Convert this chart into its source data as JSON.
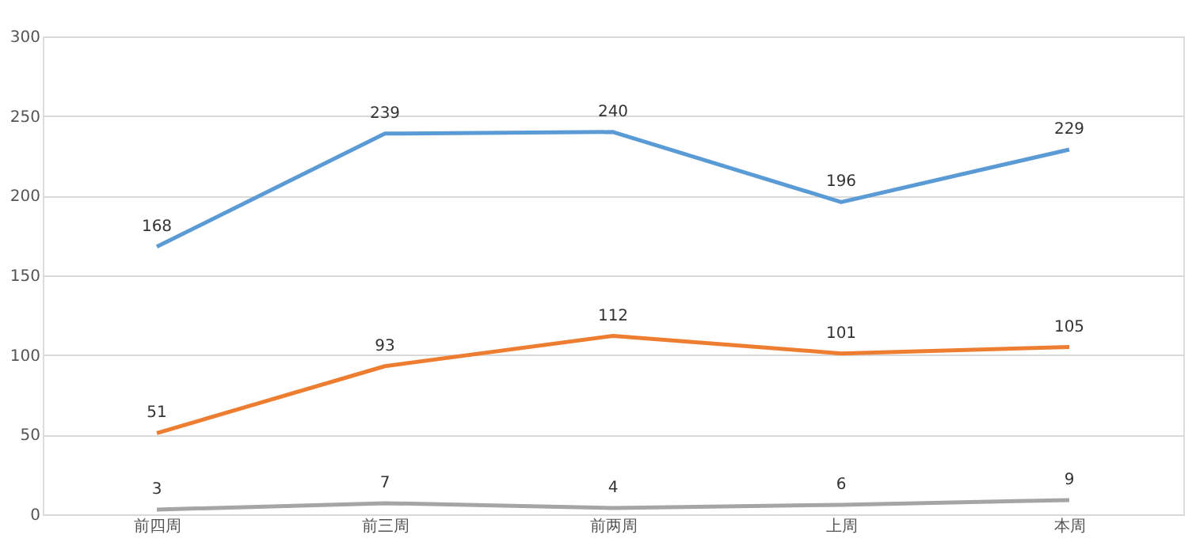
{
  "chart_data": {
    "type": "line",
    "categories": [
      "前四周",
      "前三周",
      "前两周",
      "上周",
      "本周"
    ],
    "series": [
      {
        "color": "#5b9bd5",
        "values": [
          168,
          239,
          240,
          196,
          229
        ]
      },
      {
        "color": "#ed7d31",
        "values": [
          51,
          93,
          112,
          101,
          105
        ]
      },
      {
        "color": "#a5a5a5",
        "values": [
          3,
          7,
          4,
          6,
          9
        ]
      }
    ],
    "ylim": [
      0,
      300
    ],
    "yticks": [
      0,
      50,
      100,
      150,
      200,
      250,
      300
    ],
    "grid": "y",
    "data_labels": true,
    "legend": false,
    "marker": "none",
    "line_style": "solid"
  }
}
